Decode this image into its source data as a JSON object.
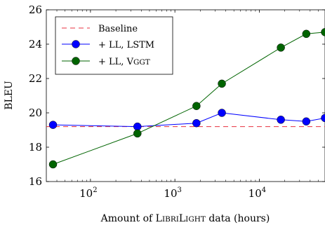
{
  "chart_data": {
    "type": "line",
    "xlabel": {
      "prefix": "Amount of ",
      "smallcaps_first": "L",
      "smallcaps_rest": "IBRI",
      "smallcaps_first2": "L",
      "smallcaps_rest2": "IGHT",
      "suffix": " data (hours)"
    },
    "ylabel": "BLEU",
    "x_scale": "log",
    "xlim": [
      30,
      60000
    ],
    "ylim": [
      16,
      26
    ],
    "y_ticks": [
      16,
      18,
      20,
      22,
      24,
      26
    ],
    "x_ticks": [
      {
        "value": 100,
        "base": "10",
        "exp": "2"
      },
      {
        "value": 1000,
        "base": "10",
        "exp": "3"
      },
      {
        "value": 10000,
        "base": "10",
        "exp": "4"
      }
    ],
    "legend_position": "top-left",
    "baseline": {
      "name": "Baseline",
      "value": 19.2,
      "color": "#e8313f",
      "style": "dashed"
    },
    "series": [
      {
        "name_prefix": "+ LL, ",
        "name_main": "LSTM",
        "name_sc_first": "",
        "name_sc_rest": "",
        "color": "#0000ff",
        "x": [
          36,
          360,
          1800,
          3600,
          18000,
          36000,
          60000
        ],
        "values": [
          19.3,
          19.2,
          19.4,
          20.0,
          19.6,
          19.5,
          19.7
        ]
      },
      {
        "name_prefix": "+ LL, ",
        "name_main": "",
        "name_sc_first": "V",
        "name_sc_rest": "GGT",
        "color": "#006400",
        "x": [
          36,
          360,
          1800,
          3600,
          18000,
          36000,
          60000
        ],
        "values": [
          17.0,
          18.8,
          20.4,
          21.7,
          23.8,
          24.6,
          24.7
        ]
      }
    ]
  }
}
